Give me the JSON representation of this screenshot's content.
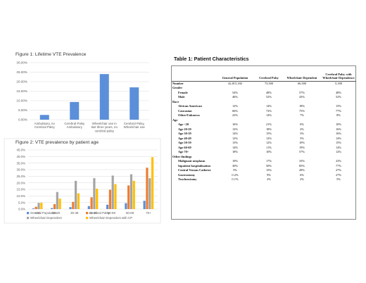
{
  "figure1": {
    "title": "Figure 1: Lifetime VTE Prevalence",
    "y_ticks": [
      "30.00%",
      "25.00%",
      "20.00%",
      "15.00%",
      "10.00%",
      "5.00%",
      "0.00%"
    ],
    "categories": [
      [
        "Ambulatory, no",
        "Cerebral Palsy"
      ],
      [
        "Cerebral Palsy",
        "Ambulatory"
      ],
      [
        "Wheelchair use in",
        "last three years, no",
        "cerebral palsy"
      ],
      [
        "Cerebral Palsy,",
        "Wheelchair use"
      ]
    ],
    "bar_color": "#5b8fd9"
  },
  "figure2": {
    "title": "Figure 2: VTE prevalence by patient age",
    "y_ticks": [
      "45.0%",
      "40.0%",
      "35.0%",
      "30.0%",
      "25.0%",
      "20.0%",
      "15.0%",
      "10.0%",
      "5.0%",
      "0.0%"
    ],
    "legend": [
      {
        "label": "General Population",
        "color": "#5b8fd9"
      },
      {
        "label": "Cerebral Palsy",
        "color": "#ed7d31"
      },
      {
        "label": "Wheelchair Dependent",
        "color": "#a5a5a5"
      },
      {
        "label": "Wheelchair Dependent with CP",
        "color": "#ffc000"
      }
    ]
  },
  "chart_data": [
    {
      "type": "bar",
      "title": "Figure 1: Lifetime VTE Prevalence",
      "categories": [
        "Ambulatory, no Cerebral Palsy",
        "Cerebral Palsy Ambulatory",
        "Wheelchair use in last three years, no cerebral palsy",
        "Cerebral Palsy, Wheelchair use"
      ],
      "values": [
        2.5,
        9.3,
        24.0,
        17.0
      ],
      "ylim": [
        0,
        30
      ],
      "grid": true,
      "xlabel": "",
      "ylabel": ""
    },
    {
      "type": "bar",
      "title": "Figure 2: VTE prevalence by patient age",
      "categories": [
        "<20",
        "20-29",
        "30-39",
        "40-49",
        "50-59",
        "60-69",
        "70+"
      ],
      "series": [
        {
          "name": "General Population",
          "values": [
            0.5,
            0.8,
            1.5,
            2.3,
            3.3,
            4.5,
            6.3
          ]
        },
        {
          "name": "Cerebral Palsy",
          "values": [
            1.8,
            3.8,
            5.5,
            9.0,
            14.7,
            18.0,
            31.5
          ]
        },
        {
          "name": "Wheelchair Dependent",
          "values": [
            4.7,
            13.0,
            21.5,
            23.5,
            25.5,
            26.5,
            23.5
          ]
        },
        {
          "name": "Wheelchair Dependent with CP",
          "values": [
            4.8,
            8.0,
            12.0,
            15.5,
            19.0,
            21.5,
            39.5
          ]
        }
      ],
      "ylim": [
        0,
        45
      ],
      "legend": "bottom",
      "grid": true,
      "xlabel": "",
      "ylabel": ""
    }
  ],
  "table": {
    "title": "Table 1: Patient Characteristics",
    "columns": [
      "General Population",
      "Cerebral Palsy",
      "Wheelchair Dependent",
      "Cerebral Palsy with Wheelchair Dependence"
    ],
    "rows": [
      {
        "label": "Number",
        "kind": "top",
        "values": [
          "42,815,160",
          "73,500",
          "66,500",
          "5,180"
        ]
      },
      {
        "label": "Gender",
        "kind": "section",
        "values": [
          "",
          "",
          "",
          ""
        ]
      },
      {
        "label": "Female",
        "kind": "sub",
        "values": [
          "54%",
          "48%",
          "57%",
          "48%"
        ]
      },
      {
        "label": "Male",
        "kind": "sub",
        "values": [
          "46%",
          "52%",
          "43%",
          "52%"
        ]
      },
      {
        "label": "Race",
        "kind": "section",
        "values": [
          "",
          "",
          "",
          ""
        ]
      },
      {
        "label": "African American",
        "kind": "sub",
        "values": [
          "12%",
          "14%",
          "18%",
          "15%"
        ]
      },
      {
        "label": "Caucasian",
        "kind": "sub",
        "values": [
          "66%",
          "72%",
          "75%",
          "77%"
        ]
      },
      {
        "label": "Other/Unknown",
        "kind": "sub",
        "values": [
          "22%",
          "14%",
          "7%",
          "8%"
        ]
      },
      {
        "label": "Age",
        "kind": "section",
        "values": [
          "",
          "",
          "",
          ""
        ]
      },
      {
        "label": "Age <20",
        "kind": "sub",
        "values": [
          "16%",
          "21%",
          "0%",
          "10%"
        ]
      },
      {
        "label": "Age 20-29",
        "kind": "sub",
        "values": [
          "12%",
          "18%",
          "2%",
          "16%"
        ]
      },
      {
        "label": "Age 30-39",
        "kind": "sub",
        "values": [
          "14%",
          "15%",
          "3%",
          "16%"
        ]
      },
      {
        "label": "Age 40-49",
        "kind": "sub",
        "values": [
          "12%",
          "12%",
          "5%",
          "14%"
        ]
      },
      {
        "label": "Age 50-59",
        "kind": "sub",
        "values": [
          "13%",
          "12%",
          "10%",
          "15%"
        ]
      },
      {
        "label": "Age 60-69",
        "kind": "sub",
        "values": [
          "14%",
          "11%",
          "19%",
          "14%"
        ]
      },
      {
        "label": "Age 70+",
        "kind": "sub",
        "values": [
          "18%",
          "10%",
          "57%",
          "12%"
        ]
      },
      {
        "label": "Other findings",
        "kind": "section",
        "values": [
          "",
          "",
          "",
          ""
        ]
      },
      {
        "label": "Malignant neoplasm",
        "kind": "sub",
        "values": [
          "10%",
          "17%",
          "33%",
          "23%"
        ]
      },
      {
        "label": "Inpatient hospitalization",
        "kind": "sub",
        "values": [
          "30%",
          "50%",
          "85%",
          "77%"
        ]
      },
      {
        "label": "Central Venous Catheter",
        "kind": "sub",
        "values": [
          "5%",
          "15%",
          "28%",
          "27%"
        ]
      },
      {
        "label": "Gastrostomy",
        "kind": "sub",
        "values": [
          "0.2%",
          "9%",
          "6%",
          "27%"
        ]
      },
      {
        "label": "Tracheostomy",
        "kind": "sub",
        "values": [
          "0.1%",
          "2%",
          "2%",
          "5%"
        ]
      }
    ]
  }
}
